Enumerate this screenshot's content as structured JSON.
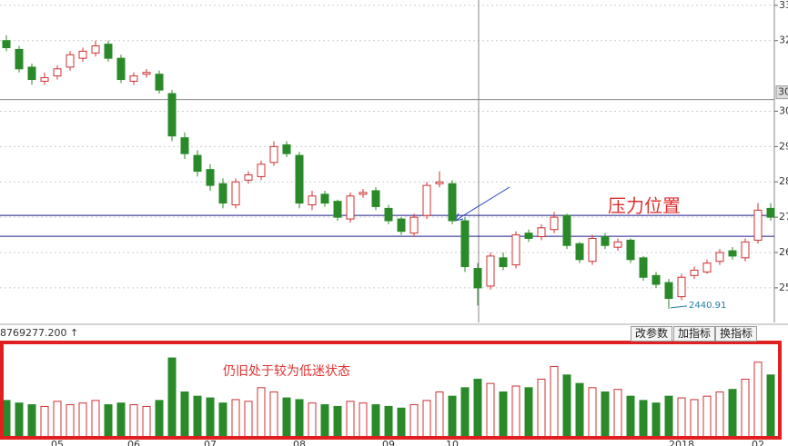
{
  "chart_data": {
    "type": "candlestick",
    "categories": [
      null,
      null,
      null,
      null,
      "05",
      null,
      null,
      null,
      null,
      null,
      "06",
      null,
      null,
      null,
      null,
      null,
      "07",
      null,
      null,
      null,
      null,
      null,
      null,
      "08",
      null,
      null,
      null,
      null,
      null,
      null,
      "09",
      null,
      null,
      null,
      null,
      "10",
      null,
      null,
      null,
      null,
      null,
      null,
      null,
      null,
      null,
      null,
      null,
      null,
      null,
      null,
      null,
      null,
      null,
      "2018",
      null,
      null,
      null,
      null,
      null,
      "02",
      null
    ],
    "open": [
      3200,
      3175,
      3125,
      3085,
      3100,
      3125,
      3150,
      3165,
      3190,
      3150,
      3085,
      3105,
      3105,
      3050,
      2925,
      2875,
      2835,
      2795,
      2735,
      2805,
      2815,
      2855,
      2905,
      2875,
      2735,
      2765,
      2745,
      2695,
      2765,
      2775,
      2725,
      2695,
      2655,
      2705,
      2795,
      2795,
      2690,
      2555,
      2505,
      2585,
      2565,
      2655,
      2645,
      2665,
      2705,
      2625,
      2575,
      2645,
      2615,
      2635,
      2585,
      2535,
      2515,
      2475,
      2535,
      2545,
      2575,
      2605,
      2585,
      2635,
      2725
    ],
    "high": [
      3215,
      3185,
      3135,
      3110,
      3130,
      3170,
      3180,
      3200,
      3200,
      3160,
      3110,
      3120,
      3115,
      3060,
      2940,
      2890,
      2850,
      2810,
      2810,
      2830,
      2860,
      2915,
      2915,
      2885,
      2775,
      2775,
      2750,
      2770,
      2780,
      2785,
      2735,
      2700,
      2710,
      2800,
      2830,
      2805,
      2700,
      2570,
      2600,
      2600,
      2660,
      2665,
      2680,
      2715,
      2710,
      2630,
      2650,
      2655,
      2640,
      2640,
      2590,
      2545,
      2525,
      2540,
      2560,
      2580,
      2610,
      2615,
      2640,
      2740,
      2740
    ],
    "low": [
      3170,
      3110,
      3075,
      3075,
      3090,
      3115,
      3140,
      3155,
      3140,
      3080,
      3075,
      3095,
      3050,
      2915,
      2865,
      2815,
      2775,
      2725,
      2725,
      2795,
      2805,
      2845,
      2870,
      2725,
      2720,
      2730,
      2690,
      2685,
      2755,
      2720,
      2680,
      2650,
      2645,
      2695,
      2785,
      2680,
      2545,
      2450,
      2495,
      2550,
      2555,
      2630,
      2635,
      2655,
      2610,
      2570,
      2565,
      2610,
      2605,
      2570,
      2520,
      2500,
      2440.91,
      2465,
      2525,
      2540,
      2565,
      2580,
      2575,
      2625,
      2690
    ],
    "close": [
      3180,
      3120,
      3090,
      3095,
      3120,
      3160,
      3170,
      3185,
      3150,
      3090,
      3100,
      3110,
      3060,
      2930,
      2880,
      2830,
      2790,
      2740,
      2800,
      2820,
      2850,
      2900,
      2880,
      2740,
      2760,
      2740,
      2700,
      2760,
      2770,
      2730,
      2690,
      2660,
      2700,
      2790,
      2800,
      2690,
      2560,
      2500,
      2590,
      2560,
      2650,
      2640,
      2670,
      2700,
      2620,
      2580,
      2640,
      2620,
      2630,
      2580,
      2530,
      2510,
      2470,
      2530,
      2550,
      2570,
      2600,
      2590,
      2630,
      2720,
      2700
    ],
    "volume": [
      45,
      42,
      40,
      38,
      44,
      40,
      42,
      45,
      40,
      42,
      40,
      38,
      45,
      95,
      55,
      50,
      48,
      42,
      46,
      44,
      60,
      55,
      48,
      46,
      42,
      40,
      38,
      44,
      42,
      40,
      38,
      36,
      40,
      45,
      55,
      50,
      60,
      70,
      65,
      55,
      62,
      60,
      70,
      85,
      75,
      65,
      60,
      55,
      58,
      50,
      45,
      42,
      50,
      48,
      46,
      50,
      55,
      58,
      70,
      90,
      75
    ],
    "vlim": [
      0,
      110
    ],
    "up_color": "#d03030",
    "down_color": "#2a8a2a",
    "ylim": [
      3315,
      2402
    ],
    "yticks": [
      {
        "value": 3300,
        "label": "33"
      },
      {
        "value": 3200,
        "label": "32"
      },
      {
        "value": 3000,
        "label": "30"
      },
      {
        "value": 2900,
        "label": "29"
      },
      {
        "value": 2800,
        "label": "28"
      },
      {
        "value": 2700,
        "label": "27"
      },
      {
        "value": 2600,
        "label": "26"
      },
      {
        "value": 2500,
        "label": "25"
      }
    ],
    "grid": true,
    "hlines": [
      2705,
      2646
    ],
    "crosshair": {
      "value": 3033,
      "label": "30"
    },
    "low_annotation": {
      "value": 2440.91,
      "label": "2440.91"
    },
    "annotation": "压力位置",
    "volume_note": "仍旧处于较为低迷状态",
    "volume_readout": "8769277.200 ↑",
    "buttons": [
      "改参数",
      "加指标",
      "换指标"
    ]
  }
}
